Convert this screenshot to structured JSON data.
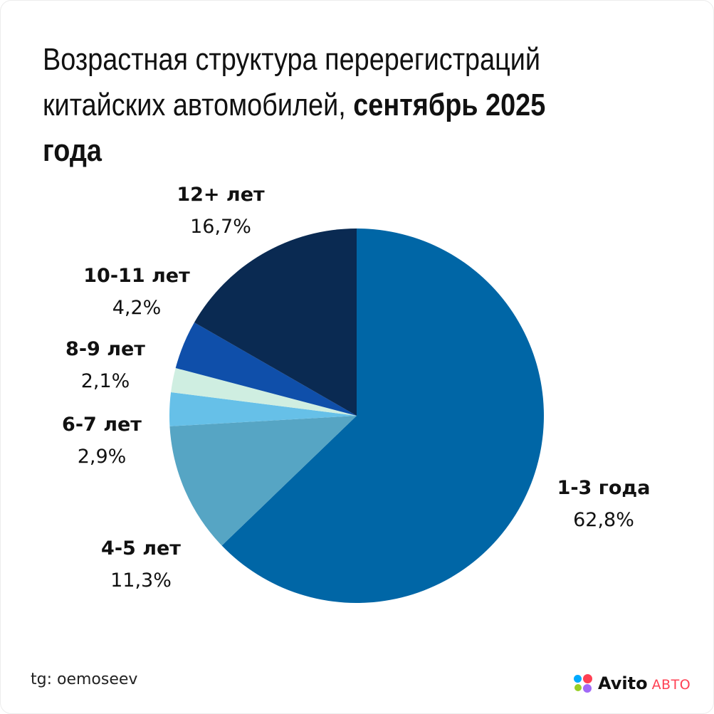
{
  "title": {
    "line1": "Возрастная структура перерегистраций",
    "line2_regular": "китайских автомобилей, ",
    "line2_bold": "сентябрь 2025 года"
  },
  "chart_data": {
    "type": "pie",
    "title": "Возрастная структура перерегистраций китайских автомобилей, сентябрь 2025 года",
    "start": "12 o'clock, clockwise",
    "slices": [
      {
        "label": "1-3 года",
        "display": "62,8%",
        "value": 62.8,
        "color": "#0066a6"
      },
      {
        "label": "4-5 лет",
        "display": "11,3%",
        "value": 11.3,
        "color": "#56a5c4"
      },
      {
        "label": "6-7 лет",
        "display": "2,9%",
        "value": 2.9,
        "color": "#66c0e8"
      },
      {
        "label": "8-9 лет",
        "display": "2,1%",
        "value": 2.1,
        "color": "#cfeee1"
      },
      {
        "label": "10-11 лет",
        "display": "4,2%",
        "value": 4.2,
        "color": "#0f4faa"
      },
      {
        "label": "12+ лет",
        "display": "16,7%",
        "value": 16.7,
        "color": "#0a2a52"
      }
    ]
  },
  "footer": {
    "source": "tg: oemoseev"
  },
  "brand": {
    "name": "Avito",
    "sub": "АВТО",
    "accent": "#ff4053"
  }
}
